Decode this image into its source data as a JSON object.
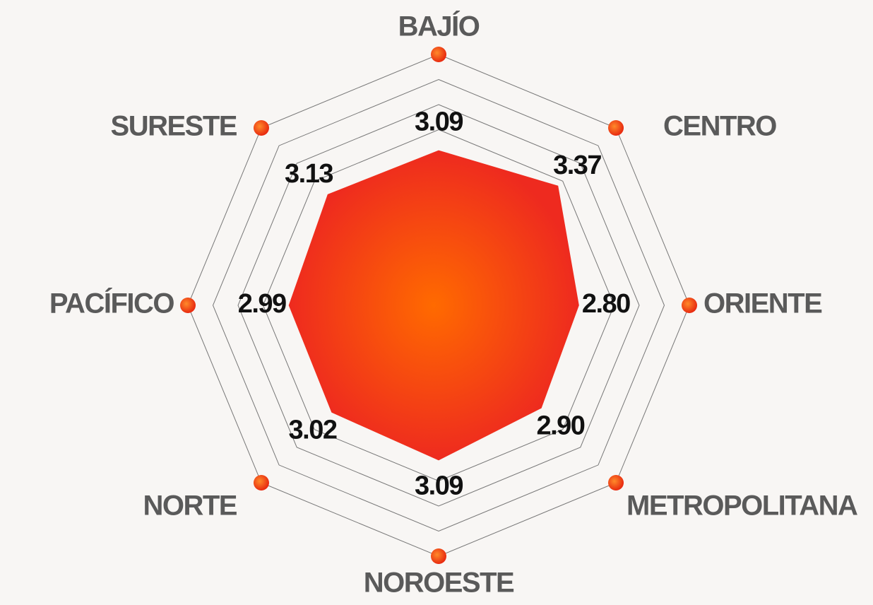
{
  "chart_data": {
    "type": "radar",
    "categories": [
      "BAJÍO",
      "CENTRO",
      "ORIENTE",
      "METROPOLITANA",
      "NOROESTE",
      "NORTE",
      "PACÍFICO",
      "SURESTE"
    ],
    "values": [
      3.09,
      3.37,
      2.8,
      2.9,
      3.09,
      3.02,
      2.99,
      3.13
    ],
    "value_labels": [
      "3.09",
      "3.37",
      "2.80",
      "2.90",
      "3.09",
      "3.02",
      "2.99",
      "3.13"
    ],
    "color": "#ee2a1f",
    "ylim": [
      0,
      5
    ],
    "yticks": [
      3.5,
      4,
      4.5,
      5
    ]
  }
}
